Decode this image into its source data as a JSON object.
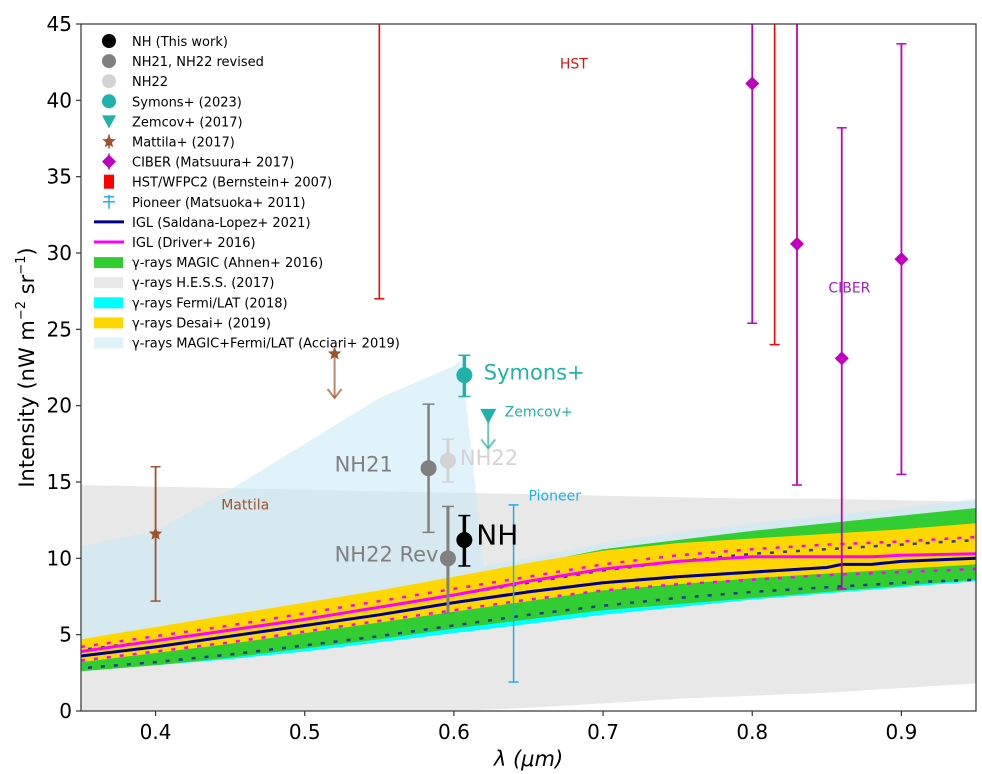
{
  "chart_data": {
    "type": "scatter",
    "title": "",
    "xlabel": "λ (μm)",
    "ylabel": "Intensity (nW m⁻² sr⁻¹)",
    "ylabel_main": "Intensity (nW m",
    "ylabel_sup1": "−2",
    "ylabel_mid": " sr",
    "ylabel_sup2": "−1",
    "ylabel_end": ")",
    "xlim": [
      0.35,
      0.95
    ],
    "ylim": [
      0,
      45
    ],
    "xticks": [
      0.4,
      0.5,
      0.6,
      0.7,
      0.8,
      0.9
    ],
    "xtick_labels": [
      "0.4",
      "0.5",
      "0.6",
      "0.7",
      "0.8",
      "0.9"
    ],
    "yticks": [
      0,
      5,
      10,
      15,
      20,
      25,
      30,
      35,
      40,
      45
    ],
    "ytick_labels": [
      "0",
      "5",
      "10",
      "15",
      "20",
      "25",
      "30",
      "35",
      "40",
      "45"
    ],
    "grid": false,
    "legend_position": "top-left",
    "colors": {
      "nh": "#000000",
      "nh21": "#808080",
      "nh22": "#d3d3d3",
      "symons": "#20b2aa",
      "zemcov": "#20b2aa",
      "mattila": "#a0522d",
      "ciber": "#c000c0",
      "hst": "#ff0000",
      "pioneer": "#1ab0e8",
      "igl_saldana": "#00008b",
      "igl_driver": "#ff00ff",
      "magic": "#32cd32",
      "hess": "#e8e8e8",
      "fermi": "#00ffff",
      "desai": "#ffd700",
      "acciari": "#dff3fb"
    },
    "legend": [
      {
        "label": "NH (This work)",
        "marker": "circle",
        "color": "#000000"
      },
      {
        "label": "NH21, NH22 revised",
        "marker": "circle",
        "color": "#808080"
      },
      {
        "label": "NH22",
        "marker": "circle",
        "color": "#d3d3d3"
      },
      {
        "label": "Symons+ (2023)",
        "marker": "circle",
        "color": "#20b2aa"
      },
      {
        "label": "Zemcov+ (2017)",
        "marker": "triangle-down",
        "color": "#20b2aa"
      },
      {
        "label": "Mattila+ (2017)",
        "marker": "star",
        "color": "#a0522d"
      },
      {
        "label": "CIBER (Matsuura+ 2017)",
        "marker": "diamond",
        "color": "#c000c0"
      },
      {
        "label": "HST/WFPC2 (Bernstein+ 2007)",
        "marker": "square",
        "color": "#ff0000"
      },
      {
        "label": "Pioneer (Matsuoka+ 2011)",
        "marker": "errorbar",
        "color": "#1ab0e8"
      },
      {
        "label": "IGL (Saldana-Lopez+ 2021)",
        "marker": "line",
        "color": "#00008b"
      },
      {
        "label": "IGL (Driver+ 2016)",
        "marker": "line",
        "color": "#ff00ff"
      },
      {
        "label": "γ-rays MAGIC (Ahnen+ 2016)",
        "marker": "patch",
        "color": "#32cd32"
      },
      {
        "label": "γ-rays H.E.S.S. (2017)",
        "marker": "patch",
        "color": "#e8e8e8"
      },
      {
        "label": "γ-rays Fermi/LAT (2018)",
        "marker": "patch",
        "color": "#00ffff"
      },
      {
        "label": "γ-rays Desai+ (2019)",
        "marker": "patch",
        "color": "#ffd700"
      },
      {
        "label": "γ-rays MAGIC+Fermi/LAT (Acciari+ 2019)",
        "marker": "patch",
        "color": "#dff3fb"
      }
    ],
    "points": {
      "nh": [
        {
          "x": 0.607,
          "y": 11.2,
          "ylo": 9.5,
          "yhi": 12.8
        }
      ],
      "nh21": [
        {
          "x": 0.583,
          "y": 15.9,
          "ylo": 11.7,
          "yhi": 20.1
        }
      ],
      "nh22_revised": [
        {
          "x": 0.596,
          "y": 10.0,
          "ylo": 6.4,
          "yhi": 13.4
        }
      ],
      "nh22": [
        {
          "x": 0.596,
          "y": 16.4,
          "ylo": 15.0,
          "yhi": 17.8
        }
      ],
      "symons": [
        {
          "x": 0.607,
          "y": 22.0,
          "ylo": 20.6,
          "yhi": 23.3
        }
      ],
      "zemcov": [
        {
          "x": 0.623,
          "y": 19.4,
          "upper_limit": true,
          "arrow_to": 17.2
        }
      ],
      "mattila": [
        {
          "x": 0.4,
          "y": 11.6,
          "ylo": 7.2,
          "yhi": 16.0
        },
        {
          "x": 0.52,
          "y": 23.4,
          "upper_limit": true,
          "arrow_to": 20.5
        }
      ],
      "ciber": [
        {
          "x": 0.8,
          "y": 41.1,
          "ylo": 25.4,
          "yhi": 48.0
        },
        {
          "x": 0.83,
          "y": 30.6,
          "ylo": 14.8,
          "yhi": 48.0
        },
        {
          "x": 0.86,
          "y": 23.1,
          "ylo": 8.0,
          "yhi": 38.2
        },
        {
          "x": 0.9,
          "y": 29.6,
          "ylo": 15.5,
          "yhi": 43.7
        }
      ],
      "hst": [
        {
          "x": 0.55,
          "ylo": 27.0,
          "yhi": 48.0
        },
        {
          "x": 0.815,
          "ylo": 24.0,
          "yhi": 48.0
        }
      ],
      "pioneer": [
        {
          "x": 0.64,
          "ylo": 1.9,
          "yhi": 13.5
        }
      ]
    },
    "bands": {
      "x": [
        0.35,
        0.4,
        0.45,
        0.5,
        0.55,
        0.6,
        0.65,
        0.7,
        0.75,
        0.8,
        0.85,
        0.9,
        0.95
      ],
      "hess": {
        "lower": [
          0.0,
          0.0,
          0.0,
          0.0,
          0.0,
          0.0,
          0.2,
          0.5,
          0.8,
          1.0,
          1.2,
          1.5,
          1.8
        ],
        "upper": [
          14.8,
          14.7,
          14.6,
          14.5,
          14.4,
          14.3,
          14.2,
          14.1,
          14.0,
          13.9,
          13.9,
          13.8,
          13.7
        ]
      },
      "acciari": {
        "x": [
          0.35,
          0.4,
          0.45,
          0.5,
          0.55,
          0.6,
          0.605,
          0.62,
          0.65,
          0.7,
          0.75,
          0.8,
          0.85,
          0.9,
          0.95
        ],
        "lower": [
          2.8,
          3.3,
          3.9,
          4.6,
          5.3,
          6.1,
          6.2,
          6.4,
          6.7,
          7.3,
          7.7,
          8.1,
          8.4,
          8.7,
          9.0
        ],
        "upper": [
          10.8,
          11.8,
          14.5,
          17.5,
          20.5,
          22.6,
          23.0,
          9.5,
          10.0,
          11.0,
          11.7,
          12.3,
          12.8,
          13.3,
          13.9
        ]
      },
      "fermi": {
        "lower": [
          2.7,
          3.0,
          3.4,
          3.9,
          4.5,
          5.1,
          5.7,
          6.3,
          6.8,
          7.3,
          7.7,
          8.1,
          8.5
        ],
        "upper": [
          3.0,
          3.6,
          4.3,
          5.0,
          5.7,
          6.3,
          6.9,
          7.5,
          7.8,
          8.1,
          8.5,
          8.9,
          9.2
        ]
      },
      "magic": {
        "lower": [
          2.6,
          3.0,
          3.5,
          4.1,
          4.7,
          5.4,
          6.0,
          6.6,
          7.0,
          7.4,
          7.8,
          8.2,
          8.6
        ],
        "upper": [
          4.3,
          5.1,
          5.9,
          6.8,
          7.7,
          8.7,
          9.6,
          10.6,
          11.2,
          11.8,
          12.3,
          12.8,
          13.3
        ]
      },
      "desai": {
        "lower": [
          3.2,
          3.8,
          4.4,
          5.1,
          5.8,
          6.5,
          7.2,
          7.9,
          8.3,
          8.7,
          9.0,
          9.3,
          9.6
        ],
        "upper": [
          4.7,
          5.5,
          6.3,
          7.1,
          7.9,
          8.8,
          9.7,
          10.5,
          11.0,
          11.3,
          11.6,
          11.9,
          12.3
        ]
      },
      "desai_dotted_magenta_upper": [
        4.2,
        4.9,
        5.6,
        6.4,
        7.2,
        8.0,
        8.8,
        9.6,
        10.2,
        10.6,
        10.9,
        11.1,
        11.4
      ],
      "desai_dotted_navy_upper": [
        4.0,
        4.6,
        5.3,
        6.0,
        6.8,
        7.6,
        8.4,
        9.2,
        9.8,
        10.3,
        10.6,
        10.9,
        11.2
      ],
      "desai_dotted_magenta_lower": [
        3.3,
        3.9,
        4.5,
        5.2,
        5.9,
        6.6,
        7.3,
        7.9,
        8.3,
        8.6,
        8.9,
        9.1,
        9.3
      ],
      "desai_dotted_navy_lower": [
        2.8,
        3.2,
        3.7,
        4.3,
        4.9,
        5.6,
        6.3,
        6.9,
        7.4,
        7.8,
        8.1,
        8.4,
        8.6
      ]
    },
    "lines": {
      "x": [
        0.35,
        0.4,
        0.45,
        0.5,
        0.55,
        0.6,
        0.65,
        0.7,
        0.75,
        0.8,
        0.85,
        0.86,
        0.88,
        0.9,
        0.95
      ],
      "igl_saldana": [
        3.6,
        4.2,
        4.9,
        5.6,
        6.3,
        7.1,
        7.8,
        8.4,
        8.8,
        9.1,
        9.4,
        9.6,
        9.6,
        9.8,
        10.0
      ],
      "igl_driver": [
        3.9,
        4.6,
        5.3,
        6.0,
        6.8,
        7.6,
        8.5,
        9.3,
        9.8,
        10.1,
        10.1,
        10.1,
        10.1,
        10.2,
        10.3
      ]
    },
    "annotations": [
      {
        "text": "HST",
        "x": 0.671,
        "y": 42.1,
        "color": "#dd1111",
        "size": "small"
      },
      {
        "text": "CIBER",
        "x": 0.851,
        "y": 27.4,
        "color": "#a020c0",
        "size": "small"
      },
      {
        "text": "Mattila",
        "x": 0.444,
        "y": 13.2,
        "color": "#a0522d",
        "size": "small"
      },
      {
        "text": "Pioneer",
        "x": 0.65,
        "y": 13.8,
        "color": "#1ab0e8",
        "size": "small"
      },
      {
        "text": "Zemcov+",
        "x": 0.634,
        "y": 19.3,
        "color": "#20b2aa",
        "size": "small"
      },
      {
        "text": "Symons+",
        "x": 0.62,
        "y": 21.7,
        "color": "#20b2aa",
        "size": "large"
      },
      {
        "text": "NH22",
        "x": 0.604,
        "y": 16.1,
        "color": "#d3d3d3",
        "size": "large"
      },
      {
        "text": "NH21",
        "x": 0.52,
        "y": 15.7,
        "color": "#808080",
        "size": "large"
      },
      {
        "text": "NH22 Rev",
        "x": 0.52,
        "y": 9.8,
        "color": "#808080",
        "size": "large"
      },
      {
        "text": "NH",
        "x": 0.615,
        "y": 10.9,
        "color": "#000000",
        "size": "xlarge"
      }
    ]
  }
}
